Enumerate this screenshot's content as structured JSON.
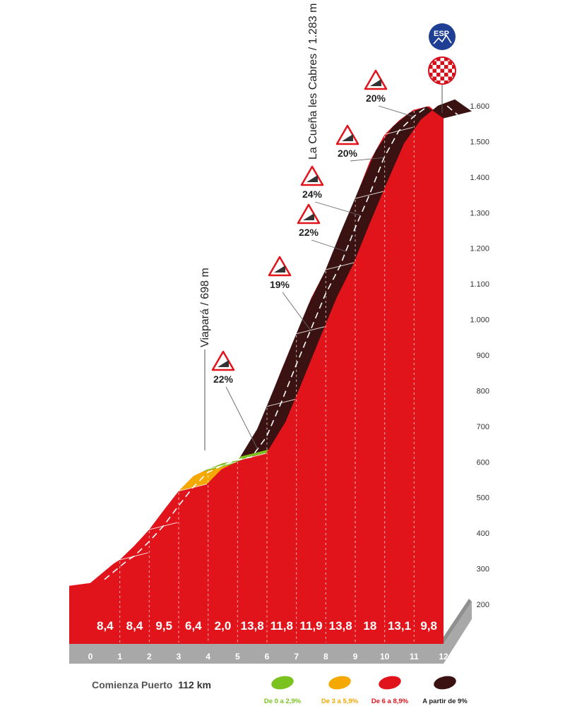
{
  "chart_data": {
    "type": "area",
    "x_unit": "km",
    "y_unit": "m",
    "ylim": [
      200,
      1600
    ],
    "y_ticks": [
      200,
      300,
      400,
      500,
      600,
      700,
      800,
      900,
      1000,
      1100,
      1200,
      1300,
      1400,
      1500,
      1600
    ],
    "y_tick_labels": [
      "200",
      "300",
      "400",
      "500",
      "600",
      "700",
      "800",
      "900",
      "1.000",
      "1.100",
      "1.200",
      "1.300",
      "1.400",
      "1.500",
      "1.600"
    ],
    "x_ticks": [
      "0",
      "1",
      "2",
      "3",
      "4",
      "5",
      "6",
      "7",
      "8",
      "9",
      "10",
      "11",
      "12"
    ],
    "profile": [
      {
        "km": 0,
        "alt": 260
      },
      {
        "km": 0.8,
        "alt": 315
      },
      {
        "km": 1,
        "alt": 325
      },
      {
        "km": 1.5,
        "alt": 365
      },
      {
        "km": 2,
        "alt": 410
      },
      {
        "km": 2.5,
        "alt": 465
      },
      {
        "km": 3,
        "alt": 518
      },
      {
        "km": 3.5,
        "alt": 560
      },
      {
        "km": 4,
        "alt": 580
      },
      {
        "km": 4.5,
        "alt": 596
      },
      {
        "km": 5,
        "alt": 604
      },
      {
        "km": 5.5,
        "alt": 660
      },
      {
        "km": 6,
        "alt": 756
      },
      {
        "km": 6.5,
        "alt": 860
      },
      {
        "km": 7,
        "alt": 960
      },
      {
        "km": 7.5,
        "alt": 1060
      },
      {
        "km": 8,
        "alt": 1140
      },
      {
        "km": 8.5,
        "alt": 1244
      },
      {
        "km": 9,
        "alt": 1340
      },
      {
        "km": 9.5,
        "alt": 1445
      },
      {
        "km": 10,
        "alt": 1520
      },
      {
        "km": 10.5,
        "alt": 1560
      },
      {
        "km": 11,
        "alt": 1590
      },
      {
        "km": 11.5,
        "alt": 1600
      },
      {
        "km": 12,
        "alt": 1565
      }
    ],
    "segments": [
      {
        "from": 0,
        "to": 3,
        "category": "red"
      },
      {
        "from": 3,
        "to": 3.8,
        "category": "orange"
      },
      {
        "from": 3.8,
        "to": 5.1,
        "category": "green"
      },
      {
        "from": 5.1,
        "to": 12,
        "category": "brown"
      }
    ],
    "km_gradients": [
      "8,4",
      "8,4",
      "9,5",
      "6,4",
      "2,0",
      "13,8",
      "11,8",
      "11,9",
      "13,8",
      "18",
      "13,1",
      "9,8"
    ],
    "max_gradients": [
      {
        "label": "22%",
        "km": 5.2
      },
      {
        "label": "19%",
        "km": 7
      },
      {
        "label": "22%",
        "km": 8.2
      },
      {
        "label": "24%",
        "km": 8.7
      },
      {
        "label": "20%",
        "km": 9.5
      },
      {
        "label": "20%",
        "km": 10.5
      }
    ],
    "summits": [
      {
        "label": "Viapará / 698 m",
        "km": 4.3
      },
      {
        "label": "La  Cueña les Cabres / 1.283 m",
        "km": 11.7
      }
    ],
    "start_label": "Comienza Puerto",
    "start_value": "112 km",
    "badge_text": "ESP",
    "legend": [
      {
        "label": "De 0 a 2,9%",
        "color": "#7ac31f"
      },
      {
        "label": "De 3 a 5,9%",
        "color": "#f5a800"
      },
      {
        "label": "De 6 a 8,9%",
        "color": "#e1131b"
      },
      {
        "label": "A partir de 9%",
        "color": "#3a1212"
      }
    ],
    "colors": {
      "fill": "#e1131b",
      "fill_dark": "#b50f15",
      "brown": "#3a1212",
      "green": "#7ac31f",
      "orange": "#f5a800",
      "red": "#e1131b",
      "base": "#a8a8a8",
      "badge": "#1f3f95",
      "checker": "#d4101a"
    }
  }
}
